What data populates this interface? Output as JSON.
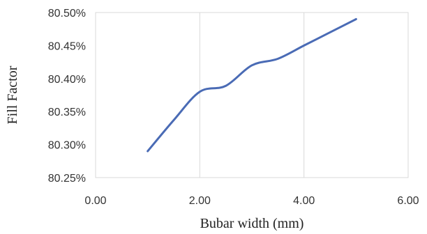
{
  "chart_data": {
    "type": "line",
    "xlabel": "Bubar width (mm)",
    "ylabel": "Fill Factor",
    "xlim": [
      0,
      6
    ],
    "ylim": [
      80.25,
      80.5
    ],
    "x_ticks": [
      "0.00",
      "2.00",
      "4.00",
      "6.00"
    ],
    "x_tick_values": [
      0,
      2,
      4,
      6
    ],
    "y_ticks": [
      "80.25%",
      "80.30%",
      "80.35%",
      "80.40%",
      "80.45%",
      "80.50%"
    ],
    "y_tick_values": [
      80.25,
      80.3,
      80.35,
      80.4,
      80.45,
      80.5
    ],
    "grid": {
      "vertical": true,
      "horizontal": false
    },
    "series": [
      {
        "color": "#4a6bb5",
        "x": [
          1.0,
          1.5,
          2.0,
          2.5,
          3.0,
          3.5,
          4.0,
          4.5,
          5.0
        ],
        "y": [
          80.29,
          80.337,
          80.38,
          80.389,
          80.42,
          80.43,
          80.45,
          80.47,
          80.49
        ]
      }
    ]
  }
}
